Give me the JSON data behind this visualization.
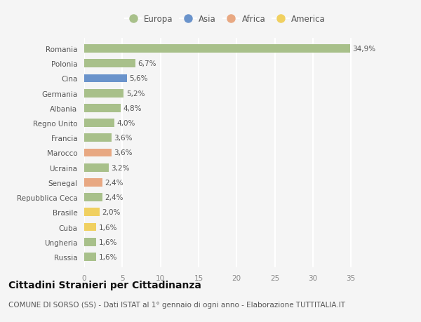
{
  "countries": [
    "Romania",
    "Polonia",
    "Cina",
    "Germania",
    "Albania",
    "Regno Unito",
    "Francia",
    "Marocco",
    "Ucraina",
    "Senegal",
    "Repubblica Ceca",
    "Brasile",
    "Cuba",
    "Ungheria",
    "Russia"
  ],
  "values": [
    34.9,
    6.7,
    5.6,
    5.2,
    4.8,
    4.0,
    3.6,
    3.6,
    3.2,
    2.4,
    2.4,
    2.0,
    1.6,
    1.6,
    1.6
  ],
  "labels": [
    "34,9%",
    "6,7%",
    "5,6%",
    "5,2%",
    "4,8%",
    "4,0%",
    "3,6%",
    "3,6%",
    "3,2%",
    "2,4%",
    "2,4%",
    "2,0%",
    "1,6%",
    "1,6%",
    "1,6%"
  ],
  "continents": [
    "Europa",
    "Europa",
    "Asia",
    "Europa",
    "Europa",
    "Europa",
    "Europa",
    "Africa",
    "Europa",
    "Africa",
    "Europa",
    "America",
    "America",
    "Europa",
    "Europa"
  ],
  "continent_colors": {
    "Europa": "#a8c08a",
    "Asia": "#6a93cb",
    "Africa": "#e8a882",
    "America": "#f0d060"
  },
  "legend_order": [
    "Europa",
    "Asia",
    "Africa",
    "America"
  ],
  "xlim": [
    0,
    37
  ],
  "xticks": [
    0,
    5,
    10,
    15,
    20,
    25,
    30,
    35
  ],
  "background_color": "#f5f5f5",
  "grid_color": "#ffffff",
  "title": "Cittadini Stranieri per Cittadinanza",
  "subtitle": "COMUNE DI SORSO (SS) - Dati ISTAT al 1° gennaio di ogni anno - Elaborazione TUTTITALIA.IT",
  "bar_height": 0.55,
  "label_fontsize": 7.5,
  "tick_fontsize": 7.5,
  "title_fontsize": 10,
  "subtitle_fontsize": 7.5
}
